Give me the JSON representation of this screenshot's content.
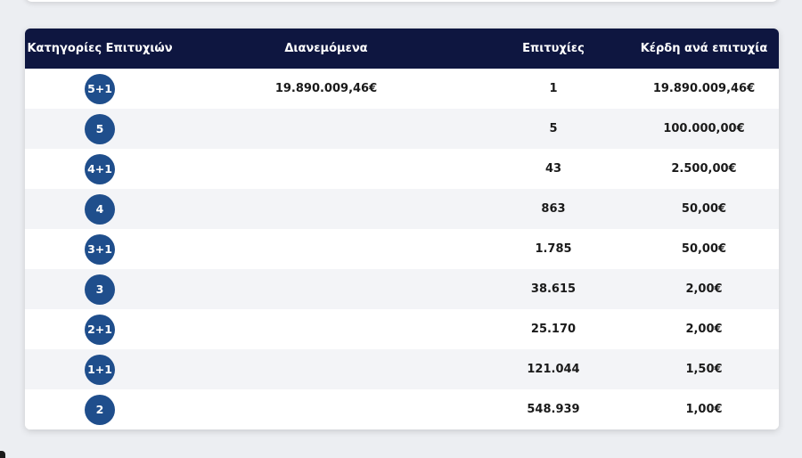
{
  "table": {
    "headers": {
      "category": "Κατηγορίες Επιτυχιών",
      "distributed": "Διανεμόμενα",
      "winners": "Επιτυχίες",
      "prize": "Κέρδη ανά επιτυχία"
    },
    "rows": [
      {
        "category": "5+1",
        "distributed": "19.890.009,46€",
        "winners": "1",
        "prize": "19.890.009,46€"
      },
      {
        "category": "5",
        "distributed": "",
        "winners": "5",
        "prize": "100.000,00€"
      },
      {
        "category": "4+1",
        "distributed": "",
        "winners": "43",
        "prize": "2.500,00€"
      },
      {
        "category": "4",
        "distributed": "",
        "winners": "863",
        "prize": "50,00€"
      },
      {
        "category": "3+1",
        "distributed": "",
        "winners": "1.785",
        "prize": "50,00€"
      },
      {
        "category": "3",
        "distributed": "",
        "winners": "38.615",
        "prize": "2,00€"
      },
      {
        "category": "2+1",
        "distributed": "",
        "winners": "25.170",
        "prize": "2,00€"
      },
      {
        "category": "1+1",
        "distributed": "",
        "winners": "121.044",
        "prize": "1,50€"
      },
      {
        "category": "2",
        "distributed": "",
        "winners": "548.939",
        "prize": "1,00€"
      }
    ]
  },
  "colors": {
    "header_bg": "#0e1640",
    "badge_bg": "#1f4e8c",
    "row_alt": "#f3f4f7"
  }
}
